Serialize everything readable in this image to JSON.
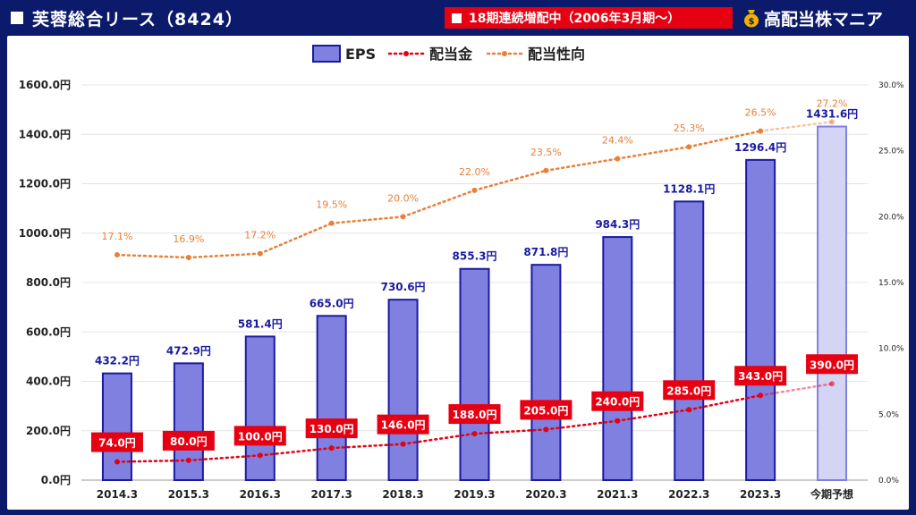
{
  "header": {
    "title": "芙蓉総合リース（8424）",
    "badge": "18期連続増配中（2006年3月期～）",
    "brand": "高配当株マニア",
    "brand_icon": "money-bag-icon"
  },
  "colors": {
    "frame": "#0b1a6b",
    "badge": "#e60012",
    "eps_bar": "#8080e0",
    "eps_bar_border": "#1a1aa0",
    "eps_bar_forecast": "#d4d4f4",
    "dividend": "#e60012",
    "payout": "#e8803a"
  },
  "chart_data": {
    "type": "bar",
    "categories": [
      "2014.3",
      "2015.3",
      "2016.3",
      "2017.3",
      "2018.3",
      "2019.3",
      "2020.3",
      "2021.3",
      "2022.3",
      "2023.3",
      "今期予想"
    ],
    "legend": [
      "EPS",
      "配当金",
      "配当性向"
    ],
    "legend_position": "top-center",
    "series": [
      {
        "name": "EPS",
        "type": "bar",
        "axis": "left",
        "values": [
          432.2,
          472.9,
          581.4,
          665.0,
          730.6,
          855.3,
          871.8,
          984.3,
          1128.1,
          1296.4,
          1431.6
        ],
        "labels": [
          "432.2円",
          "472.9円",
          "581.4円",
          "665.0円",
          "730.6円",
          "855.3円",
          "871.8円",
          "984.3円",
          "1128.1円",
          "1296.4円",
          "1431.6円"
        ]
      },
      {
        "name": "配当金",
        "type": "line",
        "axis": "left",
        "values": [
          74.0,
          80.0,
          100.0,
          130.0,
          146.0,
          188.0,
          205.0,
          240.0,
          285.0,
          343.0,
          390.0
        ],
        "labels": [
          "74.0円",
          "80.0円",
          "100.0円",
          "130.0円",
          "146.0円",
          "188.0円",
          "205.0円",
          "240.0円",
          "285.0円",
          "343.0円",
          "390.0円"
        ]
      },
      {
        "name": "配当性向",
        "type": "line",
        "axis": "right",
        "values": [
          17.1,
          16.9,
          17.2,
          19.5,
          20.0,
          22.0,
          23.5,
          24.4,
          25.3,
          26.5,
          27.2
        ],
        "labels": [
          "17.1%",
          "16.9%",
          "17.2%",
          "19.5%",
          "20.0%",
          "22.0%",
          "23.5%",
          "24.4%",
          "25.3%",
          "26.5%",
          "27.2%"
        ]
      }
    ],
    "y_left": {
      "range": [
        0,
        1600
      ],
      "ticks": [
        0,
        200,
        400,
        600,
        800,
        1000,
        1200,
        1400,
        1600
      ],
      "tick_labels": [
        "0.0円",
        "200.0円",
        "400.0円",
        "600.0円",
        "800.0円",
        "1000.0円",
        "1200.0円",
        "1400.0円",
        "1600.0円"
      ]
    },
    "y_right": {
      "range": [
        0,
        30
      ],
      "ticks": [
        0,
        5,
        10,
        15,
        20,
        25,
        30
      ],
      "tick_labels": [
        "0.0%",
        "5.0%",
        "10.0%",
        "15.0%",
        "20.0%",
        "25.0%",
        "30.0%"
      ]
    },
    "grid": true
  }
}
